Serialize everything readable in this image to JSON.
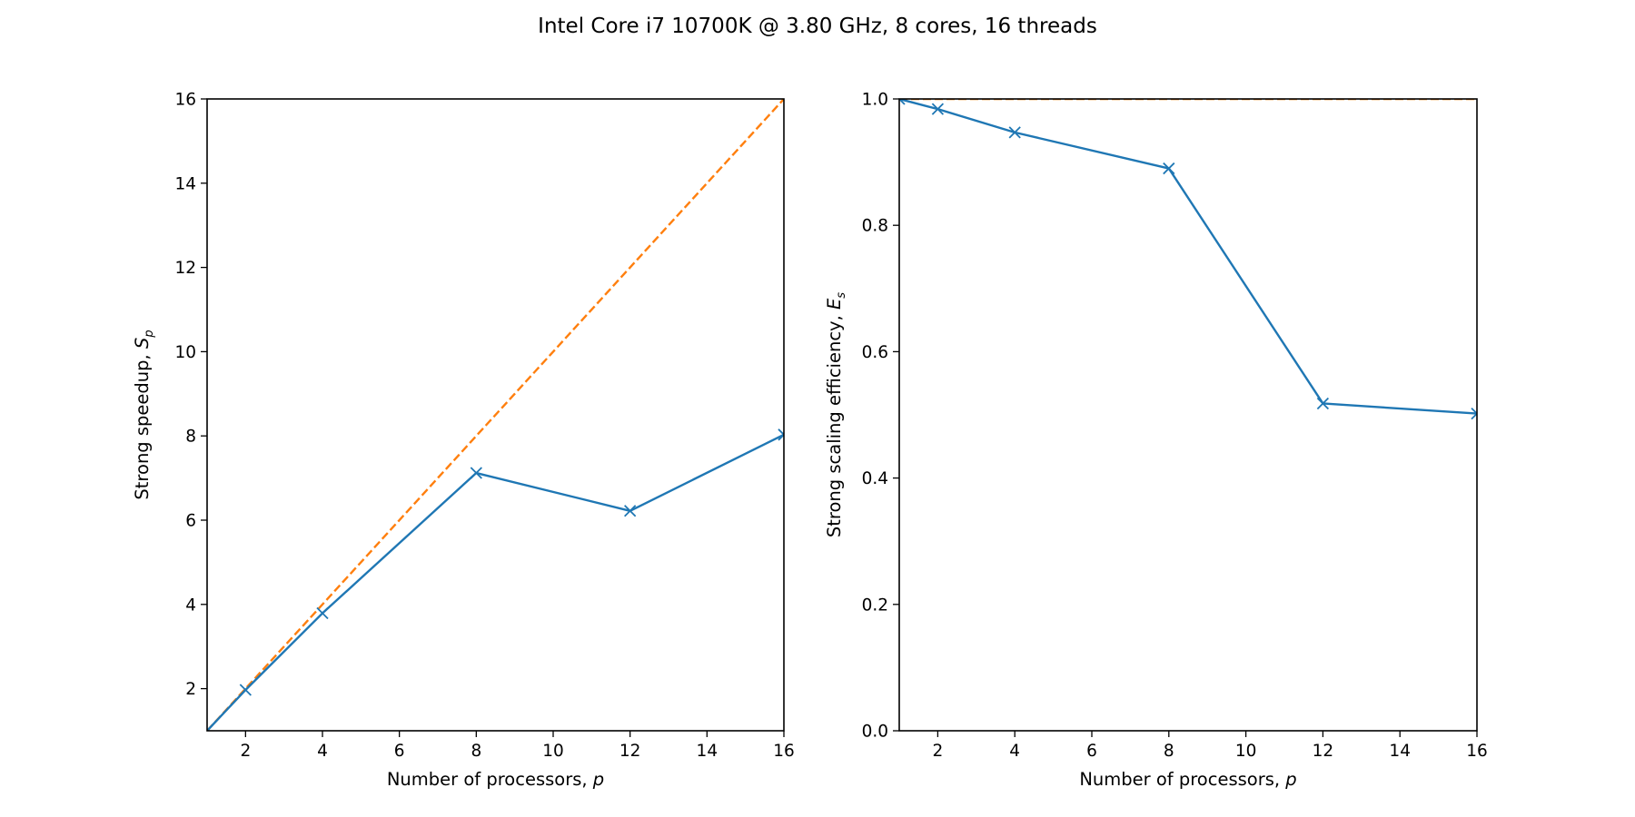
{
  "figure": {
    "title": "Intel Core i7 10700K @ 3.80 GHz, 8 cores, 16 threads"
  },
  "chart_data": [
    {
      "type": "line",
      "xlabel_text": "Number of processors, ",
      "xlabel_var": "p",
      "ylabel_text": "Strong speedup, ",
      "ylabel_var": "S",
      "ylabel_sub": "p",
      "xlim": [
        1,
        16
      ],
      "ylim": [
        1,
        16
      ],
      "xticks": [
        2,
        4,
        6,
        8,
        10,
        12,
        14,
        16
      ],
      "yticks": [
        2,
        4,
        6,
        8,
        10,
        12,
        14,
        16
      ],
      "grid": false,
      "series": [
        {
          "x": [
            1,
            2,
            4,
            8,
            12,
            16
          ],
          "values": [
            1.0,
            1.97,
            3.79,
            7.12,
            6.22,
            8.03
          ],
          "color": "#1f77b4",
          "style": "solid",
          "marker": "x"
        },
        {
          "x": [
            1,
            16
          ],
          "values": [
            1,
            16
          ],
          "color": "#ff7f0e",
          "style": "dashed",
          "marker": "none"
        }
      ]
    },
    {
      "type": "line",
      "xlabel_text": "Number of processors, ",
      "xlabel_var": "p",
      "ylabel_text": "Strong scaling efficiency, ",
      "ylabel_var": "E",
      "ylabel_sub": "s",
      "xlim": [
        1,
        16
      ],
      "ylim": [
        0,
        1
      ],
      "xticks": [
        2,
        4,
        6,
        8,
        10,
        12,
        14,
        16
      ],
      "yticks": [
        "0.0",
        "0.2",
        "0.4",
        "0.6",
        "0.8",
        "1.0"
      ],
      "grid": false,
      "series": [
        {
          "x": [
            1,
            2,
            4,
            8,
            12,
            16
          ],
          "values": [
            1.0,
            0.984,
            0.947,
            0.89,
            0.518,
            0.502
          ],
          "color": "#1f77b4",
          "style": "solid",
          "marker": "x"
        },
        {
          "x": [
            1,
            16
          ],
          "values": [
            1,
            1
          ],
          "color": "#ff7f0e",
          "style": "dashed",
          "marker": "none"
        }
      ]
    }
  ]
}
